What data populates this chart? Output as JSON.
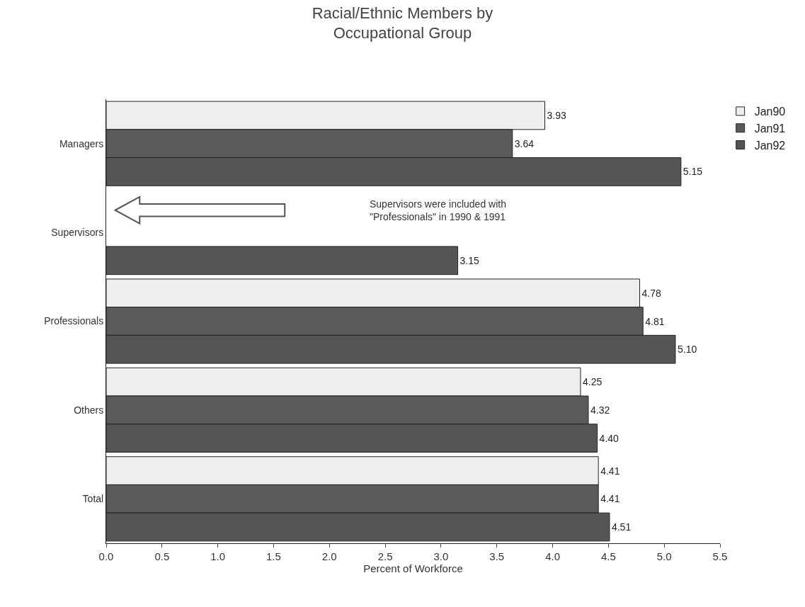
{
  "chart_data": {
    "type": "bar",
    "orientation": "horizontal",
    "title": "Racial/Ethnic Members by\nOccupational Group",
    "xlabel": "Percent of Workforce",
    "categories": [
      "Managers",
      "Supervisors",
      "Professionals",
      "Others",
      "Total"
    ],
    "series": [
      {
        "name": "Jan90",
        "color": "#eeeeee",
        "values": [
          3.93,
          null,
          4.78,
          4.25,
          4.41
        ],
        "value_labels": [
          "3.93",
          null,
          "4.78",
          "4.25",
          "4.41"
        ]
      },
      {
        "name": "Jan91",
        "color": "#5a5a5a",
        "values": [
          3.64,
          null,
          4.81,
          4.32,
          4.41
        ],
        "value_labels": [
          "3.64",
          null,
          "4.81",
          "4.32",
          "4.41"
        ]
      },
      {
        "name": "Jan92",
        "color": "#555555",
        "values": [
          5.15,
          3.15,
          5.1,
          4.4,
          4.51
        ],
        "value_labels": [
          "5.15",
          "3.15",
          "5.10",
          "4.40",
          "4.51"
        ]
      }
    ],
    "xlim": [
      0,
      5.5
    ],
    "xticks": [
      "0.0",
      "0.5",
      "1.0",
      "1.5",
      "2.0",
      "2.5",
      "3.0",
      "3.5",
      "4.0",
      "4.5",
      "5.0",
      "5.5"
    ],
    "annotations": [
      "Supervisors were included with\n\"Professionals\" in 1990 & 1991"
    ],
    "legend": "top right"
  }
}
